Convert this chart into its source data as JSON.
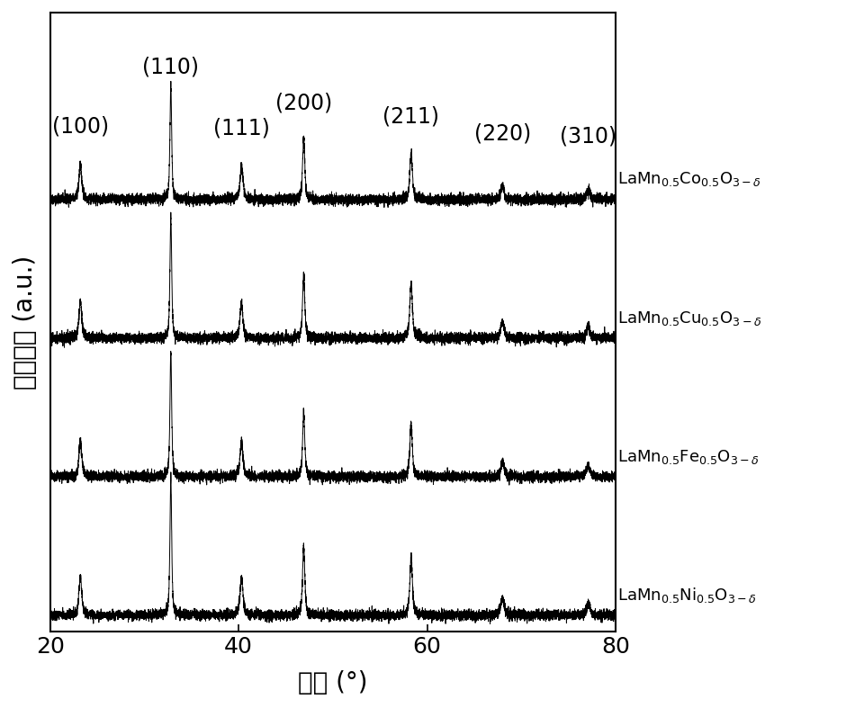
{
  "x_min": 20,
  "x_max": 80,
  "xlabel": "角度 (°)",
  "ylabel": "相对强度 (a.u.)",
  "background_color": "#ffffff",
  "line_color": "#000000",
  "peak_positions": [
    23.2,
    32.8,
    40.3,
    46.9,
    58.3,
    68.0,
    77.1
  ],
  "peak_labels": [
    "(100)",
    "(110)",
    "(111)",
    "(200)",
    "(211)",
    "(220)",
    "(310)"
  ],
  "sample_labels": [
    "LaMn$_{0.5}$Co$_{0.5}$O$_{3-δ}$",
    "LaMn$_{0.5}$Cu$_{0.5}$O$_{3-δ}$",
    "LaMn$_{0.5}$Fe$_{0.5}$O$_{3-δ}$",
    "LaMn$_{0.5}$Ni$_{0.5}$O$_{3-δ}$"
  ],
  "offsets": [
    3.0,
    2.0,
    1.0,
    0.0
  ],
  "peak_widths": [
    0.35,
    0.22,
    0.38,
    0.28,
    0.32,
    0.42,
    0.5
  ],
  "peak_heights_scale": [
    0.3,
    1.0,
    0.28,
    0.5,
    0.42,
    0.13,
    0.1
  ],
  "noise_amplitude": 0.018,
  "font_size_labels": 20,
  "font_size_ticks": 18,
  "font_size_peak_labels": 17,
  "font_size_sample_labels": 13,
  "height_variations": [
    [
      0.85,
      0.82,
      0.85,
      0.88,
      0.8,
      0.8,
      0.7
    ],
    [
      0.9,
      0.88,
      0.9,
      0.92,
      0.95,
      0.88,
      0.78
    ],
    [
      0.88,
      0.9,
      0.88,
      0.9,
      0.88,
      0.85,
      0.75
    ],
    [
      0.95,
      1.0,
      0.95,
      1.0,
      1.0,
      0.95,
      0.85
    ]
  ]
}
